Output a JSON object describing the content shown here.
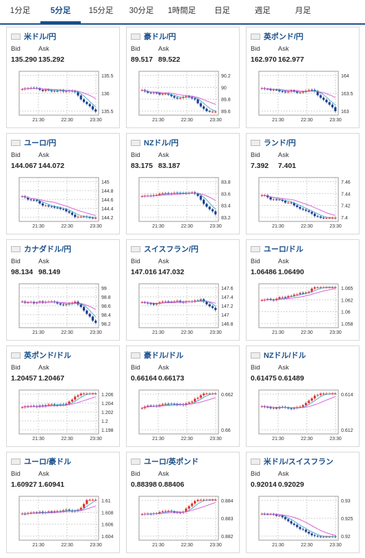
{
  "tabs": [
    {
      "label": "1分足",
      "active": false
    },
    {
      "label": "5分足",
      "active": true
    },
    {
      "label": "15分足",
      "active": false
    },
    {
      "label": "30分足",
      "active": false
    },
    {
      "label": "1時間足",
      "active": false
    },
    {
      "label": "日足",
      "active": false
    },
    {
      "label": "週足",
      "active": false
    },
    {
      "label": "月足",
      "active": false
    }
  ],
  "labels": {
    "bid": "Bid",
    "ask": "Ask"
  },
  "colors": {
    "accent": "#1a4f8a",
    "candle_up": "#e0332f",
    "candle_down": "#1a3d8f",
    "ma_short": "#3ba7c9",
    "ma_long": "#d44fd4",
    "grid": "#cccccc"
  },
  "cards": [
    {
      "name": "米ドル/円",
      "flag": "us-flag-icon",
      "bid": "135.290",
      "ask": "135.292",
      "x_ticks": [
        "21:30",
        "22:30",
        "23:30"
      ],
      "y_ticks": [
        "135.5",
        "136",
        "135.5"
      ],
      "trend": "down-late"
    },
    {
      "name": "豪ドル/円",
      "flag": "au-flag-icon",
      "bid": "89.517",
      "ask": "89.522",
      "x_ticks": [
        "21:30",
        "22:30",
        "23:30"
      ],
      "y_ticks": [
        "90.2",
        "90",
        "89.8",
        "89.6"
      ],
      "trend": "down-late"
    },
    {
      "name": "英ポンド/円",
      "flag": "uk-flag-icon",
      "bid": "162.970",
      "ask": "162.977",
      "x_ticks": [
        "21:30",
        "22:30",
        "23:30"
      ],
      "y_ticks": [
        "164",
        "163.5",
        "163"
      ],
      "trend": "down-late"
    },
    {
      "name": "ユーロ/円",
      "flag": "eu-flag-icon",
      "bid": "144.067",
      "ask": "144.072",
      "x_ticks": [
        "21:30",
        "22:30",
        "23:30"
      ],
      "y_ticks": [
        "145",
        "144.8",
        "144.6",
        "144.4",
        "144.2"
      ],
      "trend": "down"
    },
    {
      "name": "NZドル/円",
      "flag": "nz-flag-icon",
      "bid": "83.175",
      "ask": "83.187",
      "x_ticks": [
        "21:30",
        "22:30",
        "23:30"
      ],
      "y_ticks": [
        "83.8",
        "83.6",
        "83.4",
        "83.2"
      ],
      "trend": "down-late"
    },
    {
      "name": "ランド/円",
      "flag": "za-flag-icon",
      "bid": "7.392",
      "ask": "7.401",
      "x_ticks": [
        "21:30",
        "22:30",
        "23:30"
      ],
      "y_ticks": [
        "7.46",
        "7.44",
        "7.42",
        "7.4"
      ],
      "trend": "down"
    },
    {
      "name": "カナダドル/円",
      "flag": "ca-flag-icon",
      "bid": "98.134",
      "ask": "98.149",
      "x_ticks": [
        "21:30",
        "22:30",
        "23:30"
      ],
      "y_ticks": [
        "99",
        "98.8",
        "98.6",
        "98.4",
        "98.2"
      ],
      "trend": "down-late"
    },
    {
      "name": "スイスフラン/円",
      "flag": "ch-flag-icon",
      "bid": "147.016",
      "ask": "147.032",
      "x_ticks": [
        "21:30",
        "22:30",
        "23:30"
      ],
      "y_ticks": [
        "147.6",
        "147.4",
        "147.2",
        "147",
        "146.8"
      ],
      "trend": "flat-down"
    },
    {
      "name": "ユーロ/ドル",
      "flag": "eu-flag-icon",
      "bid": "1.06486",
      "ask": "1.06490",
      "x_ticks": [
        "21:30",
        "22:30",
        "23:30"
      ],
      "y_ticks": [
        "1.065",
        "1.062",
        "1.06",
        "1.058"
      ],
      "trend": "up"
    },
    {
      "name": "英ポンド/ドル",
      "flag": "uk-flag-icon",
      "bid": "1.20457",
      "ask": "1.20467",
      "x_ticks": [
        "21:30",
        "22:30",
        "23:30"
      ],
      "y_ticks": [
        "1.206",
        "1.204",
        "1.202",
        "1.2",
        "1.198"
      ],
      "trend": "up"
    },
    {
      "name": "豪ドル/ドル",
      "flag": "au-flag-icon",
      "bid": "0.66164",
      "ask": "0.66173",
      "x_ticks": [
        "21:30",
        "22:30",
        "23:30"
      ],
      "y_ticks": [
        "0.662",
        "0.66"
      ],
      "trend": "up"
    },
    {
      "name": "NZドル/ドル",
      "flag": "nz-flag-icon",
      "bid": "0.61475",
      "ask": "0.61489",
      "x_ticks": [
        "21:30",
        "22:30",
        "23:30"
      ],
      "y_ticks": [
        "0.614",
        "0.612"
      ],
      "trend": "up"
    },
    {
      "name": "ユーロ/豪ドル",
      "flag": "eu-flag-icon",
      "bid": "1.60927",
      "ask": "1.60941",
      "x_ticks": [
        "21:30",
        "22:30",
        "23:30"
      ],
      "y_ticks": [
        "1.61",
        "1.608",
        "1.606",
        "1.604"
      ],
      "trend": "up-late"
    },
    {
      "name": "ユーロ/英ポンド",
      "flag": "eu-flag-icon",
      "bid": "0.88398",
      "ask": "0.88406",
      "x_ticks": [
        "21:30",
        "22:30",
        "23:30"
      ],
      "y_ticks": [
        "0.884",
        "0.883",
        "0.882"
      ],
      "trend": "up"
    },
    {
      "name": "米ドル/スイスフラン",
      "flag": "us-flag-icon",
      "bid": "0.92014",
      "ask": "0.92029",
      "x_ticks": [
        "21:30",
        "22:30",
        "23:30"
      ],
      "y_ticks": [
        "0.93",
        "0.925",
        "0.92"
      ],
      "trend": "down"
    }
  ]
}
